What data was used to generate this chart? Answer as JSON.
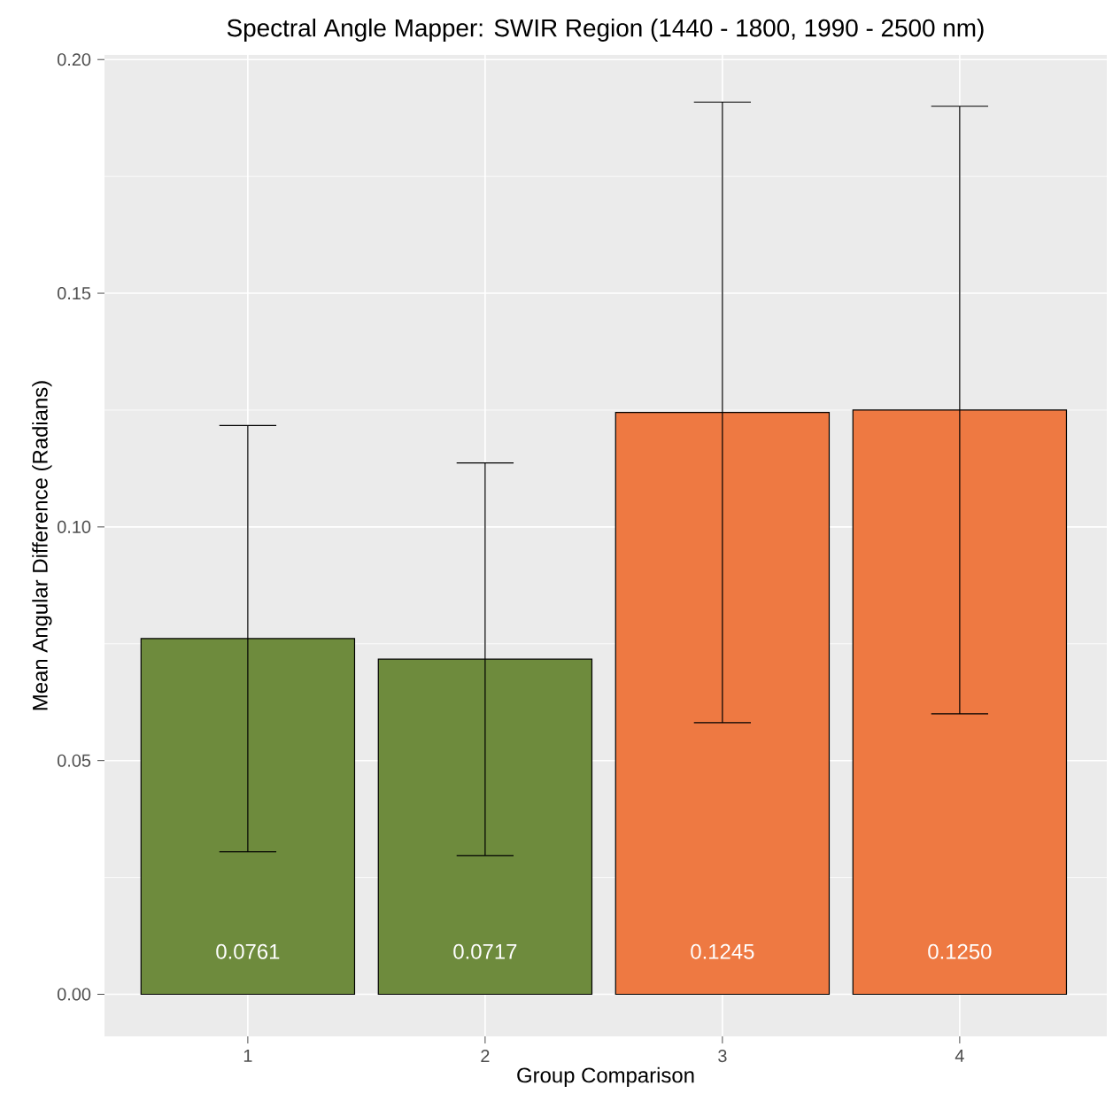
{
  "chart_data": {
    "type": "bar",
    "title": "Spectral Angle Mapper: SWIR Region (1440 - 1800, 1990 - 2500 nm)",
    "xlabel": "Group Comparison",
    "ylabel": "Mean Angular Difference (Radians)",
    "categories": [
      "1",
      "2",
      "3",
      "4"
    ],
    "values": [
      0.0761,
      0.0717,
      0.1245,
      0.125
    ],
    "colors": [
      "#6e8b3d",
      "#6e8b3d",
      "#ee7942",
      "#ee7942"
    ],
    "errors": [
      0.0456,
      0.042,
      0.0664,
      0.065
    ],
    "value_labels": [
      "0.0761",
      "0.0717",
      "0.1245",
      "0.1250"
    ],
    "ylim": [
      -0.009,
      0.201
    ],
    "yticks": [
      {
        "value": 0,
        "label": "0.00"
      },
      0.05,
      {
        "value": 0.1,
        "label": "0.10"
      },
      0.15,
      {
        "value": 0.2,
        "label": "0.20"
      }
    ],
    "grid": true
  }
}
